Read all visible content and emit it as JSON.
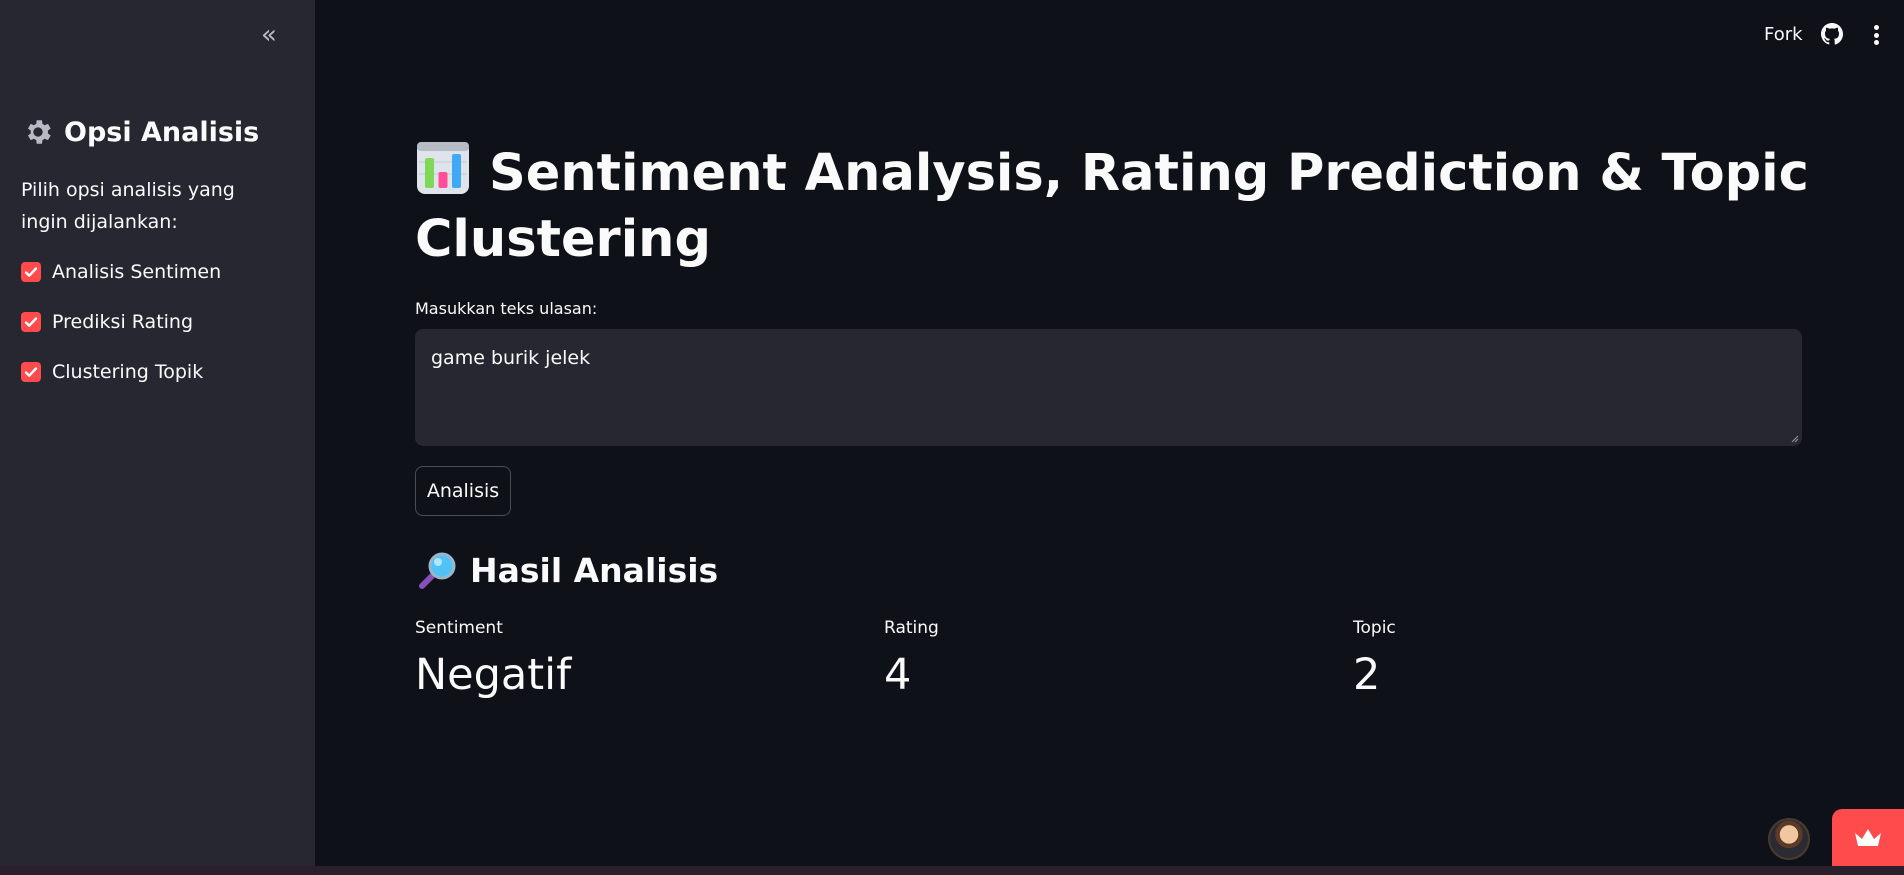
{
  "sidebar": {
    "title": "Opsi Analisis",
    "description": "Pilih opsi analisis yang ingin dijalankan:",
    "options": [
      {
        "label": "Analisis Sentimen",
        "checked": true
      },
      {
        "label": "Prediksi Rating",
        "checked": true
      },
      {
        "label": "Clustering Topik",
        "checked": true
      }
    ]
  },
  "header": {
    "fork_label": "Fork"
  },
  "main": {
    "title": "Sentiment Analysis, Rating Prediction & Topic Clustering",
    "input_label": "Masukkan teks ulasan:",
    "input_value": "game burik jelek",
    "button_label": "Analisis",
    "results_title": "Hasil Analisis",
    "metrics": [
      {
        "label": "Sentiment",
        "value": "Negatif"
      },
      {
        "label": "Rating",
        "value": "4"
      },
      {
        "label": "Topic",
        "value": "2"
      }
    ]
  },
  "colors": {
    "background": "#0e1117",
    "sidebar": "#262730",
    "accent": "#ff4b4b",
    "text": "#fafafa"
  }
}
